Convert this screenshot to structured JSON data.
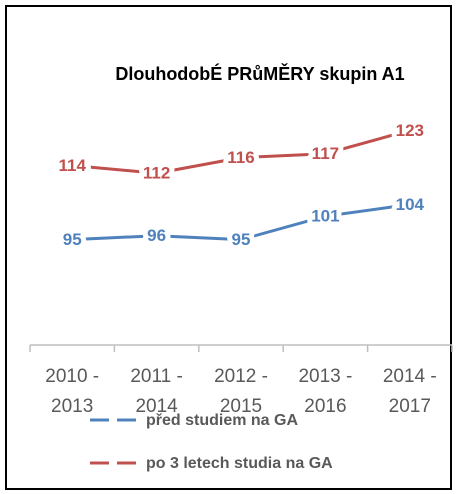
{
  "chart_data": {
    "type": "line",
    "title": "DlouhodobÉ PRůMĚRY skupin A1",
    "categories": [
      "2010 - 2013",
      "2011 - 2014",
      "2012 - 2015",
      "2013 - 2016",
      "2014 - 2017"
    ],
    "series": [
      {
        "name": "před studiem na GA",
        "color": "#4f81bd",
        "values": [
          95,
          96,
          95,
          101,
          104
        ]
      },
      {
        "name": "po 3 letech studia na GA",
        "color": "#c0504d",
        "values": [
          114,
          112,
          116,
          117,
          123
        ]
      }
    ],
    "ylim": [
      68,
      130
    ],
    "legend": "bottom",
    "data_labels": true
  }
}
